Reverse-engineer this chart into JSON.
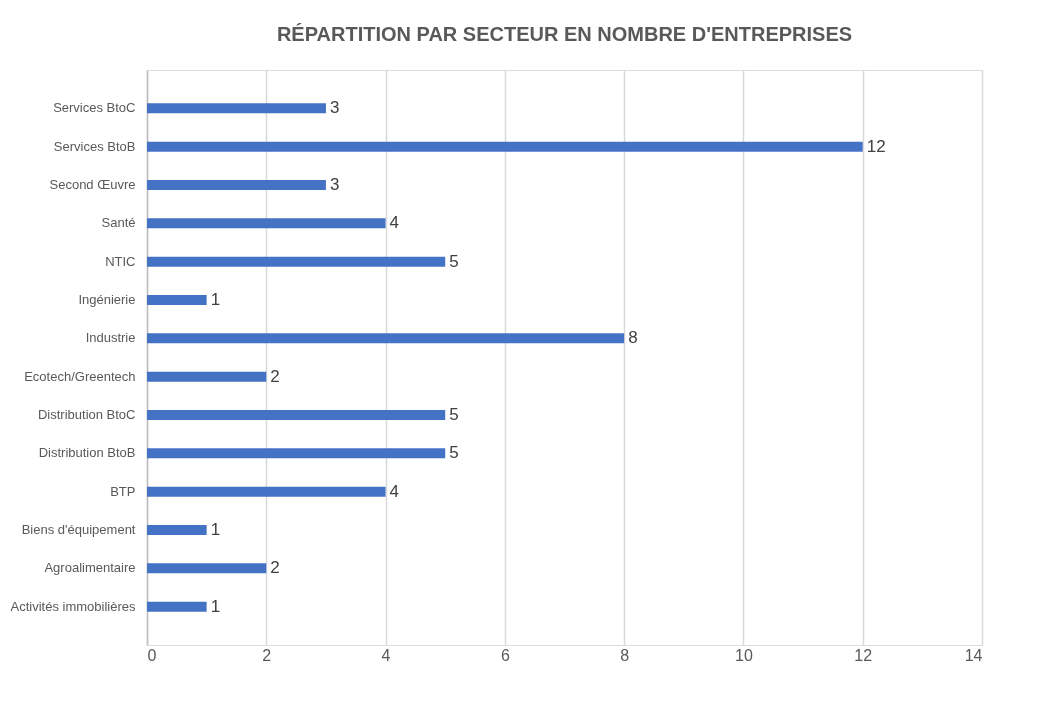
{
  "chart_data": {
    "type": "bar",
    "orientation": "horizontal",
    "title": "RÉPARTITION  PAR SECTEUR EN NOMBRE D'ENTREPRISES",
    "categories": [
      "Services BtoC",
      "Services BtoB",
      "Second Œuvre",
      "Santé",
      "NTIC",
      "Ingénierie",
      "Industrie",
      "Ecotech/Greentech",
      "Distribution BtoC",
      "Distribution BtoB",
      "BTP",
      "Biens d'équipement",
      "Agroalimentaire",
      "Activités immobilières"
    ],
    "values": [
      3,
      12,
      3,
      4,
      5,
      1,
      8,
      2,
      5,
      5,
      4,
      1,
      2,
      1
    ],
    "color": "#4472c4",
    "xlim": [
      0,
      14
    ],
    "xticks": [
      0,
      2,
      4,
      6,
      8,
      10,
      12,
      14
    ],
    "grid": "x",
    "data_labels": true
  }
}
